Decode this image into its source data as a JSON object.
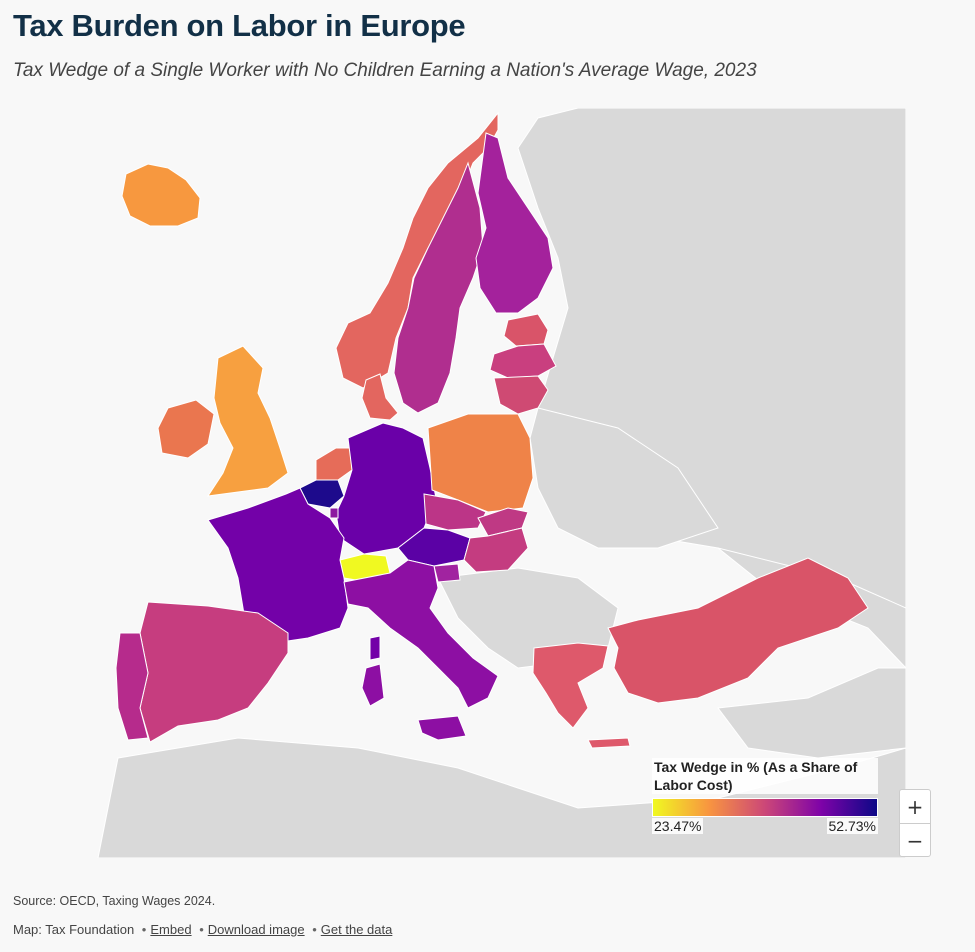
{
  "header": {
    "title": "Tax Burden on Labor in Europe",
    "subtitle": "Tax Wedge of a Single Worker with No Children Earning a Nation's Average Wage, 2023"
  },
  "legend": {
    "title": "Tax Wedge in % (As a Share of Labor Cost)",
    "min_label": "23.47%",
    "max_label": "52.73%",
    "min_value": 23.47,
    "max_value": 52.73,
    "colors": [
      "#f0f921",
      "#f89540",
      "#cc4778",
      "#7e03a8",
      "#0d0887"
    ]
  },
  "map_colors": {
    "background_land": "#d9d9d9",
    "sea": "#f8f8f8"
  },
  "countries": [
    {
      "name": "Iceland",
      "color": "#f7983f"
    },
    {
      "name": "Norway",
      "color": "#e3665f"
    },
    {
      "name": "Sweden",
      "color": "#b02e8f"
    },
    {
      "name": "Finland",
      "color": "#a4229c"
    },
    {
      "name": "Estonia",
      "color": "#d95469"
    },
    {
      "name": "Latvia",
      "color": "#c93f7f"
    },
    {
      "name": "Lithuania",
      "color": "#cf4a73"
    },
    {
      "name": "Denmark",
      "color": "#e3665f"
    },
    {
      "name": "Ireland",
      "color": "#ea764f"
    },
    {
      "name": "United Kingdom",
      "color": "#f7a040"
    },
    {
      "name": "Netherlands",
      "color": "#e66c59"
    },
    {
      "name": "Belgium",
      "color": "#1d0a8c"
    },
    {
      "name": "Luxembourg",
      "color": "#8c1aa0"
    },
    {
      "name": "Germany",
      "color": "#6a00a8"
    },
    {
      "name": "France",
      "color": "#7301a8"
    },
    {
      "name": "Switzerland",
      "color": "#f0f921"
    },
    {
      "name": "Austria",
      "color": "#5b01a5"
    },
    {
      "name": "Poland",
      "color": "#ef8348"
    },
    {
      "name": "Czech Republic",
      "color": "#bc3587"
    },
    {
      "name": "Slovakia",
      "color": "#bf3984"
    },
    {
      "name": "Hungary",
      "color": "#c43c80"
    },
    {
      "name": "Slovenia",
      "color": "#a123a0"
    },
    {
      "name": "Italy",
      "color": "#8d0fa3"
    },
    {
      "name": "Spain",
      "color": "#c63d7f"
    },
    {
      "name": "Portugal",
      "color": "#b62b8c"
    },
    {
      "name": "Greece",
      "color": "#de596b"
    },
    {
      "name": "Turkey",
      "color": "#d95468"
    }
  ],
  "zoom": {
    "in_label": "+",
    "out_label": "−"
  },
  "footer": {
    "source": "Source: OECD, Taxing Wages 2024.",
    "map_credit": "Map: Tax Foundation",
    "embed": "Embed",
    "download": "Download image",
    "get_data": "Get the data"
  }
}
